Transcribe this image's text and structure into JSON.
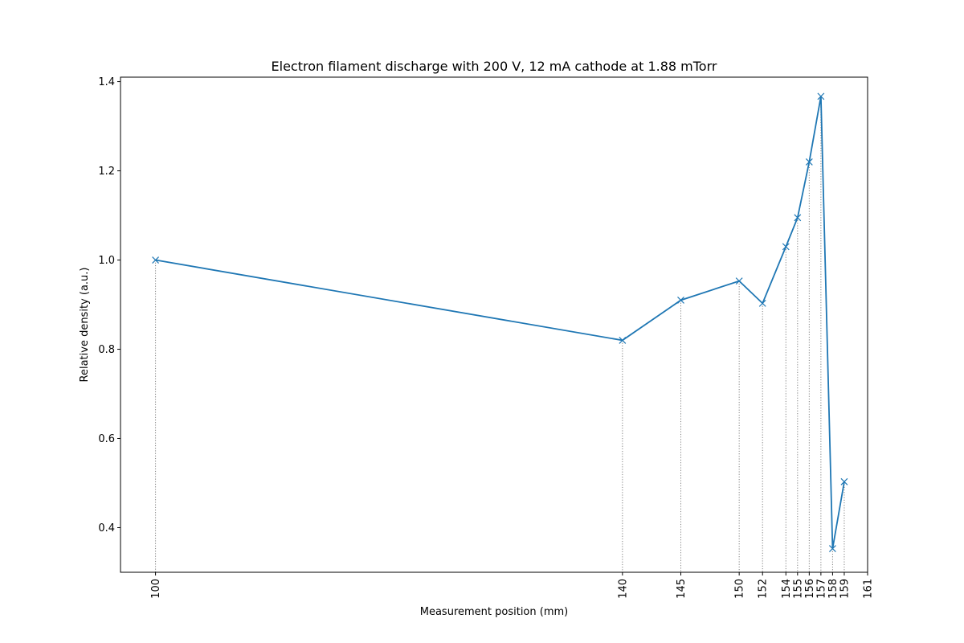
{
  "chart_data": {
    "type": "line",
    "title": "Electron filament discharge with 200 V, 12 mA cathode at 1.88 mTorr",
    "xlabel": "Measurement position (mm)",
    "ylabel": "Relative density (a.u.)",
    "xlim": [
      97,
      161
    ],
    "ylim": [
      0.3,
      1.41
    ],
    "x_ticks": [
      100,
      140,
      145,
      150,
      152,
      154,
      155,
      156,
      157,
      158,
      159,
      161
    ],
    "y_ticks": [
      0.4,
      0.6,
      0.8,
      1.0,
      1.2,
      1.4
    ],
    "y_tick_labels": [
      "0.4",
      "0.6",
      "0.8",
      "1.0",
      "1.2",
      "1.4"
    ],
    "marker": "x",
    "vertical_guides": "dotted",
    "series": [
      {
        "color": "#1f77b4",
        "x": [
          100,
          140,
          145,
          150,
          152,
          154,
          155,
          156,
          157,
          158,
          159
        ],
        "y": [
          1.0,
          0.82,
          0.91,
          0.953,
          0.903,
          1.03,
          1.095,
          1.22,
          1.367,
          0.353,
          0.503
        ]
      }
    ]
  }
}
